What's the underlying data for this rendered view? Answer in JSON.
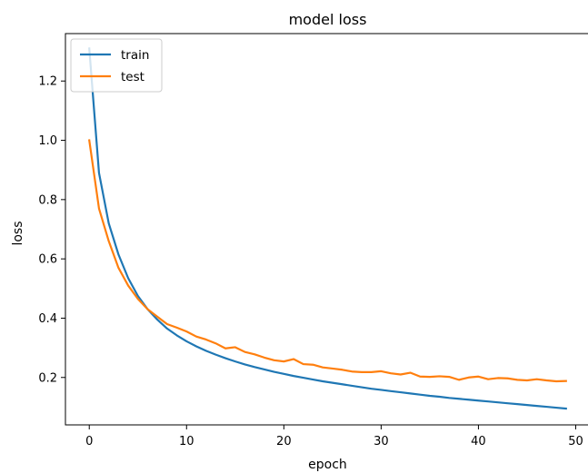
{
  "chart_data": {
    "type": "line",
    "title": "model loss",
    "xlabel": "epoch",
    "ylabel": "loss",
    "xlim": [
      -2.45,
      51.45
    ],
    "ylim": [
      0.04,
      1.36
    ],
    "xticks": [
      0,
      10,
      20,
      30,
      40,
      50
    ],
    "yticks": [
      0.2,
      0.4,
      0.6,
      0.8,
      1.0,
      1.2
    ],
    "ytick_labels": [
      "0.2",
      "0.4",
      "0.6",
      "0.8",
      "1.0",
      "1.2"
    ],
    "grid": false,
    "legend_position": "upper left",
    "series": [
      {
        "name": "train",
        "color": "#1f77b4",
        "x": [
          0,
          1,
          2,
          3,
          4,
          5,
          6,
          7,
          8,
          9,
          10,
          11,
          12,
          13,
          14,
          15,
          16,
          17,
          18,
          19,
          20,
          21,
          22,
          23,
          24,
          25,
          26,
          27,
          28,
          29,
          30,
          31,
          32,
          33,
          34,
          35,
          36,
          37,
          38,
          39,
          40,
          41,
          42,
          43,
          44,
          45,
          46,
          47,
          48,
          49
        ],
        "y": [
          1.31,
          0.89,
          0.72,
          0.615,
          0.535,
          0.475,
          0.43,
          0.395,
          0.365,
          0.342,
          0.322,
          0.305,
          0.29,
          0.277,
          0.265,
          0.254,
          0.244,
          0.235,
          0.227,
          0.219,
          0.212,
          0.205,
          0.199,
          0.193,
          0.187,
          0.182,
          0.177,
          0.172,
          0.167,
          0.162,
          0.158,
          0.154,
          0.15,
          0.146,
          0.142,
          0.138,
          0.135,
          0.131,
          0.128,
          0.125,
          0.122,
          0.119,
          0.116,
          0.113,
          0.11,
          0.107,
          0.104,
          0.101,
          0.098,
          0.095
        ]
      },
      {
        "name": "test",
        "color": "#ff7f0e",
        "x": [
          0,
          1,
          2,
          3,
          4,
          5,
          6,
          7,
          8,
          9,
          10,
          11,
          12,
          13,
          14,
          15,
          16,
          17,
          18,
          19,
          20,
          21,
          22,
          23,
          24,
          25,
          26,
          27,
          28,
          29,
          30,
          31,
          32,
          33,
          34,
          35,
          36,
          37,
          38,
          39,
          40,
          41,
          42,
          43,
          44,
          45,
          46,
          47,
          48,
          49
        ],
        "y": [
          1.0,
          0.77,
          0.66,
          0.57,
          0.51,
          0.465,
          0.43,
          0.405,
          0.38,
          0.368,
          0.355,
          0.338,
          0.328,
          0.315,
          0.298,
          0.302,
          0.286,
          0.278,
          0.267,
          0.258,
          0.254,
          0.262,
          0.245,
          0.243,
          0.234,
          0.23,
          0.226,
          0.22,
          0.218,
          0.218,
          0.221,
          0.214,
          0.21,
          0.216,
          0.203,
          0.202,
          0.204,
          0.202,
          0.192,
          0.2,
          0.203,
          0.194,
          0.198,
          0.197,
          0.192,
          0.19,
          0.194,
          0.19,
          0.187,
          0.188
        ]
      }
    ]
  }
}
